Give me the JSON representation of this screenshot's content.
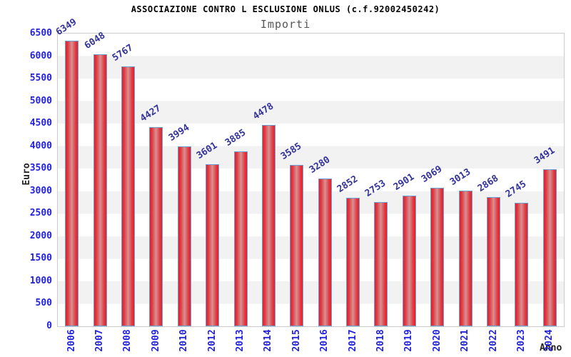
{
  "title": "ASSOCIAZIONE CONTRO L ESCLUSIONE ONLUS (c.f.92002450242)",
  "subtitle": "Importi",
  "chart_data": {
    "type": "bar",
    "categories": [
      "2006",
      "2007",
      "2008",
      "2009",
      "2010",
      "2012",
      "2013",
      "2014",
      "2015",
      "2016",
      "2017",
      "2018",
      "2019",
      "2020",
      "2021",
      "2022",
      "2023",
      "2024"
    ],
    "values": [
      6349,
      6048,
      5767,
      4427,
      3994,
      3601,
      3885,
      4478,
      3585,
      3280,
      2852,
      2753,
      2901,
      3069,
      3013,
      2868,
      2745,
      3491
    ],
    "title": "ASSOCIAZIONE CONTRO L ESCLUSIONE ONLUS (c.f.92002450242)",
    "subtitle": "Importi",
    "xlabel": "Anno",
    "ylabel": "Euro",
    "ylim": [
      0,
      6500
    ],
    "ytick_step": 500,
    "grid": "alternating horizontal bands every 500",
    "legend": "none",
    "value_labels_rotation_deg": -33,
    "x_labels_rotation_deg": -90,
    "colors": {
      "bar_edge": "#ed1c24",
      "bar_mid": "#d99191",
      "bar_border": "#6ba2d6",
      "tick_label": "#2222dd",
      "value_label": "#333399",
      "band": "#f2f2f2",
      "plot_border": "#cccccc",
      "title": "#000000",
      "subtitle": "#555555",
      "axis_label": "#222222"
    }
  }
}
